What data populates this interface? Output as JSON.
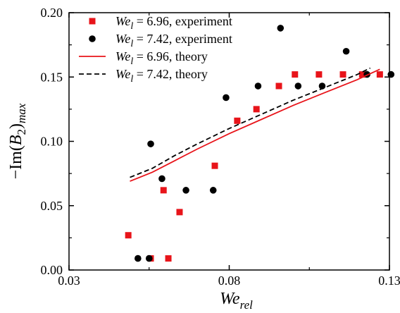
{
  "chart_data": {
    "type": "scatter",
    "xlabel": {
      "base": "We",
      "sub": "rel"
    },
    "ylabel": {
      "prefix": "−Im(",
      "base": "B",
      "sub1": "2",
      "close": ")",
      "sub2": "max"
    },
    "xlim": [
      0.03,
      0.13
    ],
    "ylim": [
      0.0,
      0.2
    ],
    "xticks": [
      0.03,
      0.08,
      0.13
    ],
    "xtick_labels": [
      "0.03",
      "0.08",
      "0.13"
    ],
    "xticks_minor": [
      0.055,
      0.105
    ],
    "yticks": [
      0.0,
      0.05,
      0.1,
      0.15,
      0.2
    ],
    "ytick_labels": [
      "0.00",
      "0.05",
      "0.10",
      "0.15",
      "0.20"
    ],
    "yticks_minor": [
      0.025,
      0.075,
      0.125,
      0.175
    ],
    "grid": false,
    "legend_position": "top-left",
    "colors": {
      "red": "#e8141a",
      "black": "#000000"
    },
    "series": [
      {
        "key": "exp696",
        "legend": {
          "base": "We",
          "sub": "l",
          "rest": " = 6.96, experiment"
        },
        "kind": "scatter",
        "marker": "square",
        "color": "#e8141a",
        "points": [
          [
            0.0485,
            0.027
          ],
          [
            0.0555,
            0.009
          ],
          [
            0.0595,
            0.062
          ],
          [
            0.061,
            0.009
          ],
          [
            0.0645,
            0.045
          ],
          [
            0.0755,
            0.081
          ],
          [
            0.0825,
            0.116
          ],
          [
            0.0885,
            0.125
          ],
          [
            0.0955,
            0.143
          ],
          [
            0.1005,
            0.152
          ],
          [
            0.108,
            0.152
          ],
          [
            0.1155,
            0.152
          ],
          [
            0.1215,
            0.152
          ],
          [
            0.127,
            0.152
          ]
        ]
      },
      {
        "key": "exp742",
        "legend": {
          "base": "We",
          "sub": "l",
          "rest": " = 7.42, experiment"
        },
        "kind": "scatter",
        "marker": "circle",
        "color": "#000000",
        "points": [
          [
            0.0515,
            0.009
          ],
          [
            0.055,
            0.009
          ],
          [
            0.0555,
            0.098
          ],
          [
            0.059,
            0.071
          ],
          [
            0.0665,
            0.062
          ],
          [
            0.075,
            0.062
          ],
          [
            0.079,
            0.134
          ],
          [
            0.089,
            0.143
          ],
          [
            0.096,
            0.188
          ],
          [
            0.1015,
            0.143
          ],
          [
            0.109,
            0.143
          ],
          [
            0.1165,
            0.17
          ],
          [
            0.123,
            0.152
          ],
          [
            0.1305,
            0.152
          ]
        ]
      },
      {
        "key": "th696",
        "legend": {
          "base": "We",
          "sub": "l",
          "rest": " = 6.96, theory"
        },
        "kind": "line",
        "dash": "solid",
        "color": "#e8141a",
        "points": [
          [
            0.049,
            0.069
          ],
          [
            0.056,
            0.076
          ],
          [
            0.063,
            0.085
          ],
          [
            0.07,
            0.094
          ],
          [
            0.08,
            0.106
          ],
          [
            0.09,
            0.117
          ],
          [
            0.1,
            0.128
          ],
          [
            0.11,
            0.138
          ],
          [
            0.12,
            0.148
          ],
          [
            0.127,
            0.156
          ]
        ]
      },
      {
        "key": "th742",
        "legend": {
          "base": "We",
          "sub": "l",
          "rest": " = 7.42, theory"
        },
        "kind": "line",
        "dash": "dashed",
        "color": "#000000",
        "points": [
          [
            0.049,
            0.072
          ],
          [
            0.056,
            0.079
          ],
          [
            0.063,
            0.089
          ],
          [
            0.07,
            0.098
          ],
          [
            0.08,
            0.11
          ],
          [
            0.09,
            0.121
          ],
          [
            0.1,
            0.132
          ],
          [
            0.11,
            0.142
          ],
          [
            0.12,
            0.152
          ],
          [
            0.124,
            0.157
          ]
        ]
      }
    ]
  }
}
